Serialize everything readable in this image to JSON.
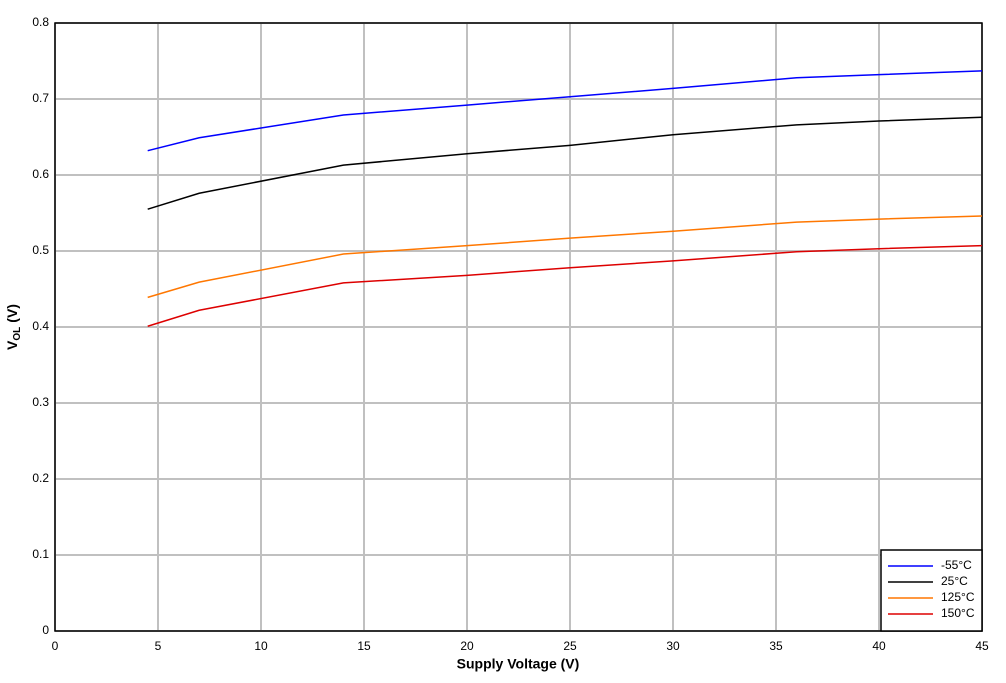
{
  "chart_data": {
    "type": "line",
    "x_label": "Supply Voltage (V)",
    "y_label": {
      "main": "V",
      "sub": "OL",
      "unit": "(V)"
    },
    "x": [
      4.5,
      7,
      14,
      20,
      25,
      30,
      36,
      40,
      45
    ],
    "series": [
      {
        "name": "-55°C",
        "color": "#0000ff",
        "values": [
          0.632,
          0.649,
          0.679,
          0.692,
          0.703,
          0.714,
          0.728,
          0.732,
          0.737
        ]
      },
      {
        "name": "25°C",
        "color": "#000000",
        "values": [
          0.555,
          0.576,
          0.613,
          0.628,
          0.639,
          0.653,
          0.666,
          0.671,
          0.676
        ]
      },
      {
        "name": "125°C",
        "color": "#ff7700",
        "values": [
          0.439,
          0.459,
          0.496,
          0.507,
          0.517,
          0.526,
          0.538,
          0.542,
          0.546
        ]
      },
      {
        "name": "150°C",
        "color": "#dd0000",
        "values": [
          0.401,
          0.422,
          0.458,
          0.468,
          0.478,
          0.487,
          0.499,
          0.503,
          0.507
        ]
      }
    ],
    "xlim": [
      0,
      45
    ],
    "xticks": [
      0,
      5,
      10,
      15,
      20,
      25,
      30,
      35,
      40,
      45
    ],
    "ylim": [
      0,
      0.8
    ],
    "yticks": [
      0,
      0.1,
      0.2,
      0.3,
      0.4,
      0.5,
      0.6,
      0.7,
      0.8
    ],
    "grid": true,
    "legend": "lower right"
  }
}
